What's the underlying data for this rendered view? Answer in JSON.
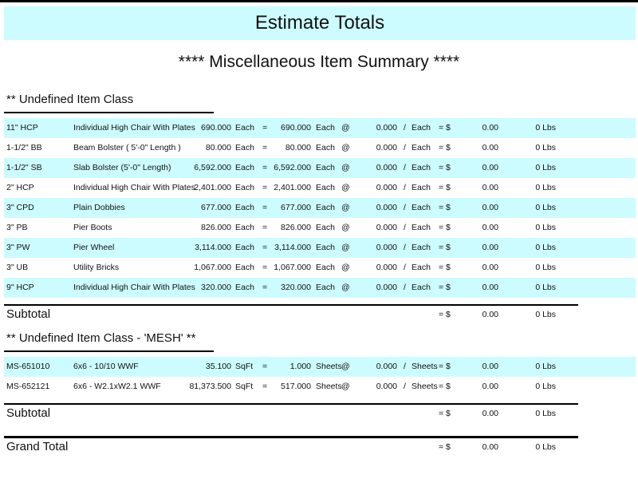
{
  "header": {
    "title": "Estimate Totals",
    "subtitle": "****  Miscellaneous Item Summary  ****"
  },
  "sections": [
    {
      "title": "** Undefined Item Class",
      "rows": [
        [
          "11\" HCP",
          "Individual High Chair With Plates",
          "690.000",
          "Each",
          "=",
          "690.000",
          "Each",
          "@",
          "0.000",
          "/",
          "Each",
          "= $",
          "0.00",
          "0 Lbs"
        ],
        [
          "1-1/2\" BB",
          "Beam Bolster ( 5'-0\" Length )",
          "80.000",
          "Each",
          "=",
          "80.000",
          "Each",
          "@",
          "0.000",
          "/",
          "Each",
          "= $",
          "0.00",
          "0 Lbs"
        ],
        [
          "1-1/2\" SB",
          "Slab Bolster (5'-0\" Length)",
          "6,592.000",
          "Each",
          "=",
          "6,592.000",
          "Each",
          "@",
          "0.000",
          "/",
          "Each",
          "= $",
          "0.00",
          "0 Lbs"
        ],
        [
          "2\" HCP",
          "Individual High Chair With Plates",
          "2,401.000",
          "Each",
          "=",
          "2,401.000",
          "Each",
          "@",
          "0.000",
          "/",
          "Each",
          "= $",
          "0.00",
          "0 Lbs"
        ],
        [
          "3\" CPD",
          "Plain Dobbies",
          "677.000",
          "Each",
          "=",
          "677.000",
          "Each",
          "@",
          "0.000",
          "/",
          "Each",
          "= $",
          "0.00",
          "0 Lbs"
        ],
        [
          "3\" PB",
          "Pier Boots",
          "826.000",
          "Each",
          "=",
          "826.000",
          "Each",
          "@",
          "0.000",
          "/",
          "Each",
          "= $",
          "0.00",
          "0 Lbs"
        ],
        [
          "3\" PW",
          "Pier Wheel",
          "3,114.000",
          "Each",
          "=",
          "3,114.000",
          "Each",
          "@",
          "0.000",
          "/",
          "Each",
          "= $",
          "0.00",
          "0 Lbs"
        ],
        [
          "3\" UB",
          "Utility Bricks",
          "1,067.000",
          "Each",
          "=",
          "1,067.000",
          "Each",
          "@",
          "0.000",
          "/",
          "Each",
          "= $",
          "0.00",
          "0 Lbs"
        ],
        [
          "9\" HCP",
          "Individual High Chair With Plates",
          "320.000",
          "Each",
          "=",
          "320.000",
          "Each",
          "@",
          "0.000",
          "/",
          "Each",
          "= $",
          "0.00",
          "0 Lbs"
        ]
      ],
      "subtotal": [
        "Subtotal",
        "= $",
        "0.00",
        "0 Lbs"
      ]
    },
    {
      "title": "** Undefined Item Class - 'MESH' **",
      "rows": [
        [
          "MS-651010",
          "6x6 - 10/10 WWF",
          "35.100",
          "SqFt",
          "=",
          "1.000",
          "Sheets",
          "@",
          "0.000",
          "/",
          "Sheets",
          "= $",
          "0.00",
          "0 Lbs"
        ],
        [
          "MS-652121",
          "6x6 - W2.1xW2.1 WWF",
          "81,373.500",
          "SqFt",
          "=",
          "517.000",
          "Sheets",
          "@",
          "0.000",
          "/",
          "Sheets",
          "= $",
          "0.00",
          "0 Lbs"
        ]
      ],
      "subtotal": [
        "Subtotal",
        "= $",
        "0.00",
        "0 Lbs"
      ]
    }
  ],
  "grand_total": [
    "Grand Total",
    "= $",
    "0.00",
    "0 Lbs"
  ]
}
